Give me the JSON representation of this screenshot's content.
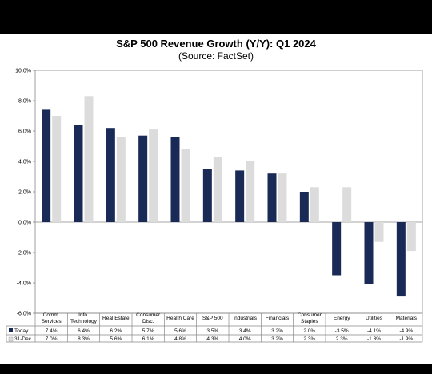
{
  "chart_data": {
    "type": "bar",
    "title": "S&P 500 Revenue Growth (Y/Y): Q1 2024",
    "subtitle": "(Source: FactSet)",
    "categories": [
      [
        "Comm.",
        "Services"
      ],
      [
        "Info.",
        "Technology"
      ],
      [
        "Real Estate"
      ],
      [
        "Consumer",
        "Disc."
      ],
      [
        "Health Care"
      ],
      [
        "S&P 500"
      ],
      [
        "Industrials"
      ],
      [
        "Financials"
      ],
      [
        "Consumer",
        "Staples"
      ],
      [
        "Energy"
      ],
      [
        "Utilities"
      ],
      [
        "Materials"
      ]
    ],
    "series": [
      {
        "name": "Today",
        "color": "#1a2a57",
        "values": [
          7.4,
          6.4,
          6.2,
          5.7,
          5.6,
          3.5,
          3.4,
          3.2,
          2.0,
          -3.5,
          -4.1,
          -4.9
        ],
        "labels": [
          "7.4%",
          "6.4%",
          "6.2%",
          "5.7%",
          "5.6%",
          "3.5%",
          "3.4%",
          "3.2%",
          "2.0%",
          "-3.5%",
          "-4.1%",
          "-4.9%"
        ]
      },
      {
        "name": "31-Dec",
        "color": "#dcdcdc",
        "values": [
          7.0,
          8.3,
          5.6,
          6.1,
          4.8,
          4.3,
          4.0,
          3.2,
          2.3,
          2.3,
          -1.3,
          -1.9
        ],
        "labels": [
          "7.0%",
          "8.3%",
          "5.6%",
          "6.1%",
          "4.8%",
          "4.3%",
          "4.0%",
          "3.2%",
          "2.3%",
          "2.3%",
          "-1.3%",
          "-1.9%"
        ]
      }
    ],
    "ylim": [
      -6,
      10
    ],
    "yticks": [
      "10.0%",
      "8.0%",
      "6.0%",
      "4.0%",
      "2.0%",
      "0.0%",
      "-2.0%",
      "-4.0%",
      "-6.0%"
    ],
    "ytick_values": [
      10,
      8,
      6,
      4,
      2,
      0,
      -2,
      -4,
      -6
    ],
    "grid": false,
    "legend": "data-table"
  }
}
